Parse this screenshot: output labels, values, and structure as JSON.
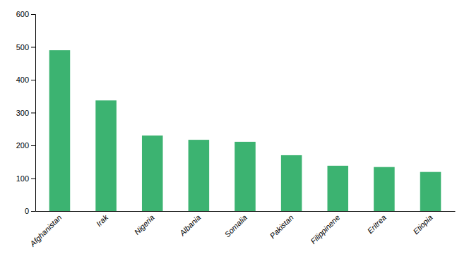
{
  "chart_data": {
    "type": "bar",
    "categories": [
      "Afghanistan",
      "Irak",
      "Nigeria",
      "Albania",
      "Somalia",
      "Pakistan",
      "Filippinene",
      "Eritrea",
      "Etiopia"
    ],
    "values": [
      490,
      337,
      230,
      217,
      211,
      170,
      138,
      134,
      119
    ],
    "color": "#3CB371",
    "ylim": [
      0,
      600
    ],
    "yticks": [
      0,
      100,
      200,
      300,
      400,
      500,
      600
    ],
    "grid": false
  }
}
